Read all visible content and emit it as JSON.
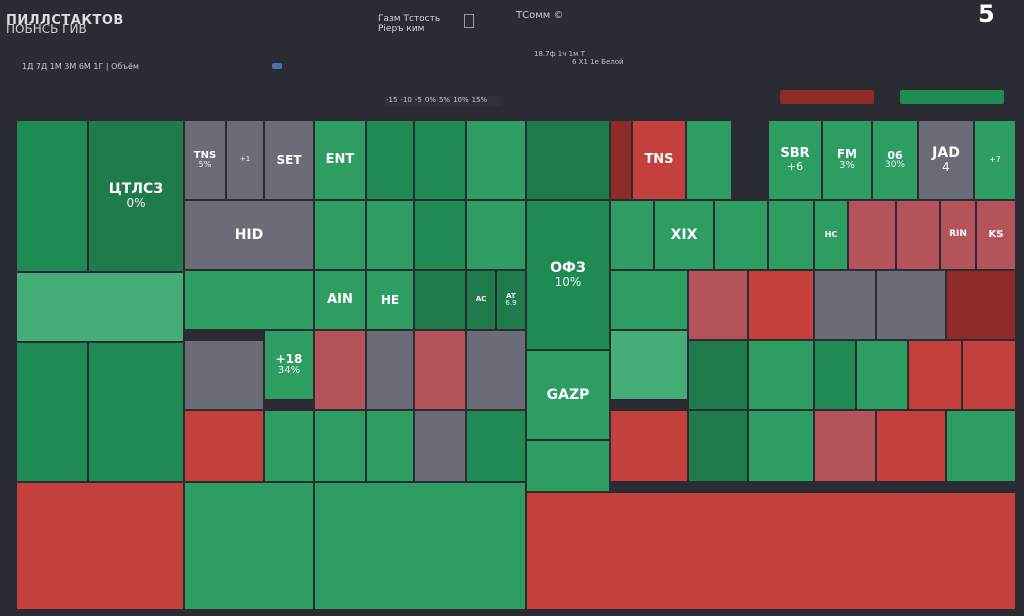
{
  "header": {
    "title": "ПИЛЛСТАКТОВ",
    "subtitle": "ПОБНСЬ ГИВ",
    "controls": "1Д 7Д 1М 3М 6М 1Г | Объём",
    "center_line1": "Газм Тстость",
    "center_line2": "Ріеръ ким",
    "brand": "ТСомм ©",
    "update_line1": "18.7ф 1ч 1м Т",
    "update_line2": "6 Х1 1е Белой",
    "logo": "5"
  },
  "scale_labels": [
    "-15",
    "-10",
    "-5",
    "0%",
    "5%",
    "10%",
    "15%"
  ],
  "colors": {
    "background": "#2a2b33",
    "strong_green": "#1f8a54",
    "mid_green": "#2e9d62",
    "light_green": "#44ad78",
    "neutral": "#6b6d76",
    "light_red": "#b4535a",
    "strong_red": "#c4403c",
    "dark_red": "#8e2a28"
  },
  "chart_data": {
    "type": "heatmap",
    "title": "",
    "tiles": [
      {
        "label": "",
        "change": "",
        "color": "#1f8a54"
      },
      {
        "label": "ЦТЛСЗ",
        "change": "0%",
        "color": "#1f7a4c"
      },
      {
        "label": "TNS",
        "change": "5%",
        "color": "#6b6d76"
      },
      {
        "label": "",
        "change": "+1",
        "color": "#6b6d76"
      },
      {
        "label": "SET",
        "change": "",
        "color": "#6b6d76"
      },
      {
        "label": "ENT",
        "change": "",
        "color": "#2e9d62"
      },
      {
        "label": "",
        "change": "",
        "color": "#1f8a54"
      },
      {
        "label": "",
        "change": "",
        "color": "#1f8a54"
      },
      {
        "label": "",
        "change": "",
        "color": "#2e9d62"
      },
      {
        "label": "",
        "change": "",
        "color": "#1f7a4c"
      },
      {
        "label": "",
        "change": "",
        "color": "#2e9d62"
      },
      {
        "label": "",
        "change": "",
        "color": "#2e9d62"
      },
      {
        "label": "",
        "change": "",
        "color": "#1f8a54"
      },
      {
        "label": "",
        "change": "",
        "color": "#2e9d62"
      },
      {
        "label": "ОФЗ",
        "change": "10%",
        "color": "#1f8a54"
      },
      {
        "label": "TNS",
        "change": "",
        "color": "#c4403c"
      },
      {
        "label": "",
        "change": "",
        "color": "#8e2a28"
      },
      {
        "label": "",
        "change": "",
        "color": "#2e9d62"
      },
      {
        "label": "SBR",
        "change": "+6",
        "color": "#2e9d62"
      },
      {
        "label": "FM",
        "change": "3%",
        "color": "#2e9d62"
      },
      {
        "label": "06",
        "change": "30%",
        "color": "#2e9d62"
      },
      {
        "label": "JAD",
        "change": "4",
        "color": "#6b6d76"
      },
      {
        "label": "",
        "change": "+7",
        "color": "#2e9d62"
      },
      {
        "label": "HID",
        "change": "",
        "color": "#6b6d76"
      },
      {
        "label": "",
        "change": "",
        "color": "#2e9d62"
      },
      {
        "label": "XIX",
        "change": "",
        "color": "#2e9d62"
      },
      {
        "label": "",
        "change": "",
        "color": "#2e9d62"
      },
      {
        "label": "",
        "change": "",
        "color": "#2e9d62"
      },
      {
        "label": "HC",
        "change": "",
        "color": "#2e9d62"
      },
      {
        "label": "",
        "change": "",
        "color": "#b4535a"
      },
      {
        "label": "",
        "change": "",
        "color": "#b4535a"
      },
      {
        "label": "RIN",
        "change": "",
        "color": "#b4535a"
      },
      {
        "label": "KS",
        "change": "",
        "color": "#b4535a"
      },
      {
        "label": "",
        "change": "",
        "color": "#44ad78"
      },
      {
        "label": "",
        "change": "",
        "color": "#2e9d62"
      },
      {
        "label": "+18",
        "change": "34%",
        "color": "#2e9d62"
      },
      {
        "label": "AIN",
        "change": "",
        "color": "#2e9d62"
      },
      {
        "label": "HE",
        "change": "",
        "color": "#2e9d62"
      },
      {
        "label": "",
        "change": "",
        "color": "#1f7a4c"
      },
      {
        "label": "AC",
        "change": "",
        "color": "#1f7a4c"
      },
      {
        "label": "AT",
        "change": "6.9",
        "color": "#1f7a4c"
      },
      {
        "label": "",
        "change": "",
        "color": "#2e9d62"
      },
      {
        "label": "",
        "change": "",
        "color": "#b4535a"
      },
      {
        "label": "",
        "change": "",
        "color": "#c4403c"
      },
      {
        "label": "",
        "change": "",
        "color": "#6b6d76"
      },
      {
        "label": "",
        "change": "",
        "color": "#6b6d76"
      },
      {
        "label": "",
        "change": "",
        "color": "#8e2a28"
      },
      {
        "label": "GAZP",
        "change": "",
        "color": "#2e9d62"
      },
      {
        "label": "",
        "change": "",
        "color": "#44ad78"
      },
      {
        "label": "",
        "change": "",
        "color": "#b4535a"
      },
      {
        "label": "",
        "change": "",
        "color": "#6b6d76"
      },
      {
        "label": "",
        "change": "",
        "color": "#b4535a"
      },
      {
        "label": "",
        "change": "",
        "color": "#6b6d76"
      },
      {
        "label": "",
        "change": "",
        "color": "#1f7a4c"
      },
      {
        "label": "",
        "change": "",
        "color": "#1f8a54"
      },
      {
        "label": "",
        "change": "",
        "color": "#1f8a54"
      },
      {
        "label": "",
        "change": "",
        "color": "#6b6d76"
      },
      {
        "label": "",
        "change": "",
        "color": "#2e9d62"
      },
      {
        "label": "",
        "change": "",
        "color": "#1f8a54"
      },
      {
        "label": "",
        "change": "",
        "color": "#2e9d62"
      },
      {
        "label": "",
        "change": "",
        "color": "#c4403c"
      },
      {
        "label": "",
        "change": "",
        "color": "#c4403c"
      },
      {
        "label": "",
        "change": "",
        "color": "#c4403c"
      },
      {
        "label": "",
        "change": "",
        "color": "#2e9d62"
      },
      {
        "label": "",
        "change": "",
        "color": "#2e9d62"
      },
      {
        "label": "",
        "change": "",
        "color": "#2e9d62"
      },
      {
        "label": "",
        "change": "",
        "color": "#6b6d76"
      },
      {
        "label": "",
        "change": "",
        "color": "#1f8a54"
      },
      {
        "label": "",
        "change": "",
        "color": "#2e9d62"
      },
      {
        "label": "",
        "change": "",
        "color": "#c4403c"
      },
      {
        "label": "",
        "change": "",
        "color": "#1f7a4c"
      },
      {
        "label": "",
        "change": "",
        "color": "#2e9d62"
      },
      {
        "label": "",
        "change": "",
        "color": "#b4535a"
      },
      {
        "label": "",
        "change": "",
        "color": "#c4403c"
      },
      {
        "label": "",
        "change": "",
        "color": "#2e9d62"
      },
      {
        "label": "",
        "change": "",
        "color": "#c4403c"
      },
      {
        "label": "",
        "change": "",
        "color": "#2e9d62"
      },
      {
        "label": "",
        "change": "",
        "color": "#2e9d62"
      },
      {
        "label": "",
        "change": "",
        "color": "#c4403c"
      }
    ]
  }
}
